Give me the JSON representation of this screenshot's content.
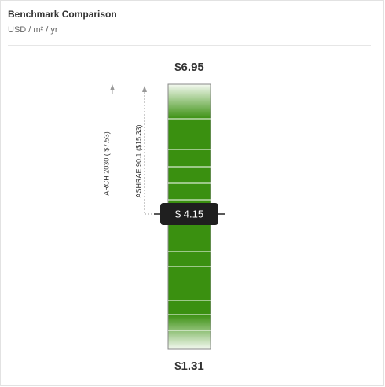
{
  "header": {
    "title": "Benchmark Comparison",
    "subtitle": "USD / m² / yr"
  },
  "gauge": {
    "max_label": "$6.95",
    "min_label": "$1.31",
    "current_label": "$ 4.15",
    "benchmarks": [
      {
        "label": "ARCH 2030 ( $7.53)"
      },
      {
        "label": "ASHRAE 90.1 ($15.33)"
      }
    ]
  }
}
